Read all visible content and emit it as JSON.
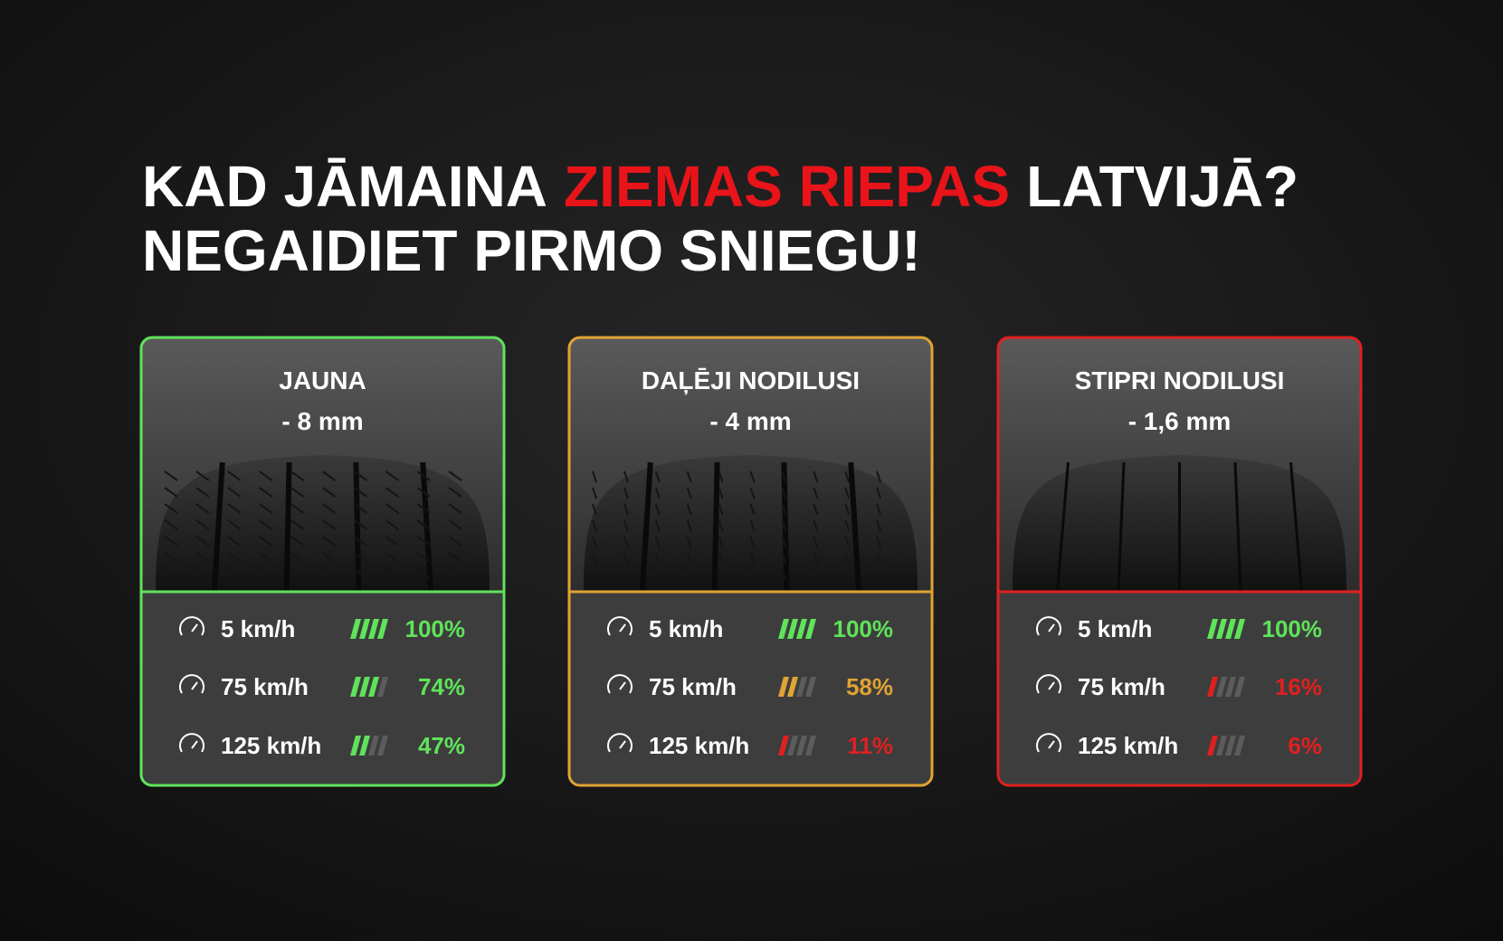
{
  "header": {
    "line1_start": "KAD JĀMAINA",
    "line1_highlight": "ZIEMAS RIEPAS",
    "line1_end": "LATVIJĀ?",
    "line2": "NEGAIDIET PIRMO SNIEGU!"
  },
  "cards": [
    {
      "title": "JAUNA",
      "depth": "- 8 mm",
      "color": "#5fe35a",
      "tire": "new",
      "rows": [
        {
          "speed": "5 km/h",
          "level": 4,
          "level_color": "#5fe35a",
          "percent": "100%"
        },
        {
          "speed": "75 km/h",
          "level": 3,
          "level_color": "#5fe35a",
          "percent": "74%"
        },
        {
          "speed": "125 km/h",
          "level": 2,
          "level_color": "#5fe35a",
          "percent": "47%"
        }
      ]
    },
    {
      "title": "DAĻĒJI NODILUSI",
      "depth": "- 4 mm",
      "color": "#e0a334",
      "tire": "mid",
      "rows": [
        {
          "speed": "5 km/h",
          "level": 4,
          "level_color": "#5fe35a",
          "percent": "100%"
        },
        {
          "speed": "75 km/h",
          "level": 2,
          "level_color": "#e0a334",
          "percent": "58%"
        },
        {
          "speed": "125 km/h",
          "level": 1,
          "level_color": "#e02020",
          "percent": "11%"
        }
      ]
    },
    {
      "title": "STIPRI NODILUSI",
      "depth": "- 1,6 mm",
      "color": "#e02020",
      "tire": "worn",
      "rows": [
        {
          "speed": "5 km/h",
          "level": 4,
          "level_color": "#5fe35a",
          "percent": "100%"
        },
        {
          "speed": "75 km/h",
          "level": 1,
          "level_color": "#e02020",
          "percent": "16%"
        },
        {
          "speed": "125 km/h",
          "level": 1,
          "level_color": "#e02020",
          "percent": "6%"
        }
      ]
    }
  ]
}
